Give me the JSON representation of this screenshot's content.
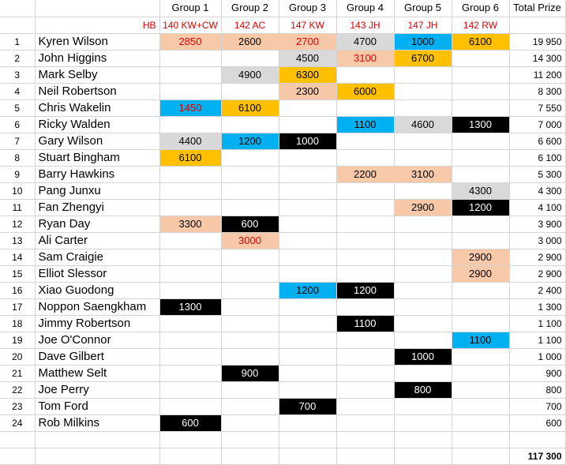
{
  "colors": {
    "peach": "#f8c9a8",
    "gray": "#d9d9d9",
    "orange": "#ffc000",
    "blue": "#00b0f0",
    "black": "#000000",
    "red": "#e00000"
  },
  "header": {
    "groups": [
      "Group 1",
      "Group 2",
      "Group 3",
      "Group 4",
      "Group 5",
      "Group 6"
    ],
    "total_label": "Total Prize",
    "hb_label": "HB",
    "breaks": [
      "140 KW+CW",
      "142 AC",
      "147 KW",
      "143 JH",
      "147 JH",
      "142 RW"
    ]
  },
  "rows": [
    {
      "rank": "1",
      "name": "Kyren Wilson",
      "cells": [
        {
          "v": "2850",
          "c": "peach",
          "red": true
        },
        {
          "v": "2600",
          "c": "peach"
        },
        {
          "v": "2700",
          "c": "peach",
          "red": true
        },
        {
          "v": "4700",
          "c": "gray"
        },
        {
          "v": "1000",
          "c": "blue"
        },
        {
          "v": "6100",
          "c": "orange"
        }
      ],
      "total": "19 950"
    },
    {
      "rank": "2",
      "name": "John Higgins",
      "cells": [
        null,
        null,
        {
          "v": "4500",
          "c": "gray"
        },
        {
          "v": "3100",
          "c": "peach",
          "red": true
        },
        {
          "v": "6700",
          "c": "orange"
        },
        null
      ],
      "total": "14 300"
    },
    {
      "rank": "3",
      "name": "Mark Selby",
      "cells": [
        null,
        {
          "v": "4900",
          "c": "gray"
        },
        {
          "v": "6300",
          "c": "orange"
        },
        null,
        null,
        null
      ],
      "total": "11 200"
    },
    {
      "rank": "4",
      "name": "Neil Robertson",
      "cells": [
        null,
        null,
        {
          "v": "2300",
          "c": "peach"
        },
        {
          "v": "6000",
          "c": "orange"
        },
        null,
        null
      ],
      "total": "8 300"
    },
    {
      "rank": "5",
      "name": "Chris Wakelin",
      "cells": [
        {
          "v": "1450",
          "c": "blue",
          "red": true
        },
        {
          "v": "6100",
          "c": "orange"
        },
        null,
        null,
        null,
        null
      ],
      "total": "7 550"
    },
    {
      "rank": "6",
      "name": "Ricky Walden",
      "cells": [
        null,
        null,
        null,
        {
          "v": "1100",
          "c": "blue"
        },
        {
          "v": "4600",
          "c": "gray"
        },
        {
          "v": "1300",
          "c": "black"
        }
      ],
      "total": "7 000"
    },
    {
      "rank": "7",
      "name": "Gary Wilson",
      "cells": [
        {
          "v": "4400",
          "c": "gray"
        },
        {
          "v": "1200",
          "c": "blue"
        },
        {
          "v": "1000",
          "c": "black"
        },
        null,
        null,
        null
      ],
      "total": "6 600"
    },
    {
      "rank": "8",
      "name": "Stuart Bingham",
      "cells": [
        {
          "v": "6100",
          "c": "orange"
        },
        null,
        null,
        null,
        null,
        null
      ],
      "total": "6 100"
    },
    {
      "rank": "9",
      "name": "Barry Hawkins",
      "cells": [
        null,
        null,
        null,
        {
          "v": "2200",
          "c": "peach"
        },
        {
          "v": "3100",
          "c": "peach"
        },
        null
      ],
      "total": "5 300"
    },
    {
      "rank": "10",
      "name": "Pang Junxu",
      "cells": [
        null,
        null,
        null,
        null,
        null,
        {
          "v": "4300",
          "c": "gray"
        }
      ],
      "total": "4 300"
    },
    {
      "rank": "11",
      "name": "Fan Zhengyi",
      "cells": [
        null,
        null,
        null,
        null,
        {
          "v": "2900",
          "c": "peach"
        },
        {
          "v": "1200",
          "c": "black"
        }
      ],
      "total": "4 100"
    },
    {
      "rank": "12",
      "name": "Ryan Day",
      "cells": [
        {
          "v": "3300",
          "c": "peach"
        },
        {
          "v": "600",
          "c": "black"
        },
        null,
        null,
        null,
        null
      ],
      "total": "3 900"
    },
    {
      "rank": "13",
      "name": "Ali Carter",
      "cells": [
        null,
        {
          "v": "3000",
          "c": "peach",
          "red": true
        },
        null,
        null,
        null,
        null
      ],
      "total": "3 000"
    },
    {
      "rank": "14",
      "name": "Sam Craigie",
      "cells": [
        null,
        null,
        null,
        null,
        null,
        {
          "v": "2900",
          "c": "peach"
        }
      ],
      "total": "2 900"
    },
    {
      "rank": "15",
      "name": "Elliot Slessor",
      "cells": [
        null,
        null,
        null,
        null,
        null,
        {
          "v": "2900",
          "c": "peach"
        }
      ],
      "total": "2 900"
    },
    {
      "rank": "16",
      "name": "Xiao Guodong",
      "cells": [
        null,
        null,
        {
          "v": "1200",
          "c": "blue"
        },
        {
          "v": "1200",
          "c": "black"
        },
        null,
        null
      ],
      "total": "2 400"
    },
    {
      "rank": "17",
      "name": "Noppon Saengkham",
      "cells": [
        {
          "v": "1300",
          "c": "black"
        },
        null,
        null,
        null,
        null,
        null
      ],
      "total": "1 300"
    },
    {
      "rank": "18",
      "name": "Jimmy Robertson",
      "cells": [
        null,
        null,
        null,
        {
          "v": "1100",
          "c": "black"
        },
        null,
        null
      ],
      "total": "1 100"
    },
    {
      "rank": "19",
      "name": "Joe O'Connor",
      "cells": [
        null,
        null,
        null,
        null,
        null,
        {
          "v": "1100",
          "c": "blue"
        }
      ],
      "total": "1 100"
    },
    {
      "rank": "20",
      "name": "Dave Gilbert",
      "cells": [
        null,
        null,
        null,
        null,
        {
          "v": "1000",
          "c": "black"
        },
        null
      ],
      "total": "1 000"
    },
    {
      "rank": "21",
      "name": "Matthew Selt",
      "cells": [
        null,
        {
          "v": "900",
          "c": "black"
        },
        null,
        null,
        null,
        null
      ],
      "total": "900"
    },
    {
      "rank": "22",
      "name": "Joe Perry",
      "cells": [
        null,
        null,
        null,
        null,
        {
          "v": "800",
          "c": "black"
        },
        null
      ],
      "total": "800"
    },
    {
      "rank": "23",
      "name": "Tom Ford",
      "cells": [
        null,
        null,
        {
          "v": "700",
          "c": "black"
        },
        null,
        null,
        null
      ],
      "total": "700"
    },
    {
      "rank": "24",
      "name": "Rob Milkins",
      "cells": [
        {
          "v": "600",
          "c": "black"
        },
        null,
        null,
        null,
        null,
        null
      ],
      "total": "600"
    }
  ],
  "grand_total": "117 300"
}
